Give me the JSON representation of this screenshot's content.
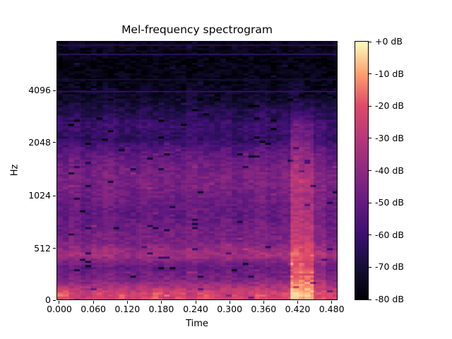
{
  "chart_data": {
    "type": "heatmap",
    "title": "Mel-frequency spectrogram",
    "xlabel": "Time",
    "ylabel": "Hz",
    "x_axis": {
      "tick_labels": [
        "0.000",
        "0.060",
        "0.120",
        "0.180",
        "0.240",
        "0.300",
        "0.360",
        "0.420",
        "0.480"
      ],
      "tick_pos": [
        0.01,
        0.131,
        0.252,
        0.373,
        0.495,
        0.616,
        0.737,
        0.858,
        0.979
      ],
      "range_s": [
        0.0,
        0.494
      ]
    },
    "y_axis": {
      "scale": "mel",
      "tick_labels": [
        "4096",
        "2048",
        "1024",
        "512",
        "0"
      ],
      "tick_pos": [
        0.191,
        0.392,
        0.597,
        0.801,
        1.0
      ]
    },
    "colorbar": {
      "tick_labels": [
        "+0 dB",
        "-10 dB",
        "-20 dB",
        "-30 dB",
        "-40 dB",
        "-50 dB",
        "-60 dB",
        "-70 dB",
        "-80 dB"
      ],
      "tick_pos": [
        0,
        0.125,
        0.25,
        0.375,
        0.5,
        0.625,
        0.75,
        0.875,
        1.0
      ],
      "colormap": "magma",
      "stops": [
        "#000004",
        "#140e36",
        "#3b0f70",
        "#641a80",
        "#8c2981",
        "#b73779",
        "#de4968",
        "#fe9f6d",
        "#fcfdbf"
      ]
    },
    "db_range": [
      -80,
      0
    ],
    "h_lines": [
      {
        "y_frac": 0.011,
        "db": -65
      },
      {
        "y_frac": 0.049,
        "db": -63
      },
      {
        "y_frac": 0.145,
        "db": -70
      },
      {
        "y_frac": 0.191,
        "db": -62
      }
    ],
    "grid": {
      "cols": 24,
      "rows": 20,
      "values_db": [
        [
          -75,
          -74,
          -76,
          -75,
          -73,
          -76,
          -75,
          -77,
          -74,
          -76,
          -75,
          -73,
          -76,
          -75,
          -77,
          -74,
          -76,
          -75,
          -73,
          -76,
          -74,
          -75,
          -76,
          -74
        ],
        [
          -78,
          -77,
          -78,
          -76,
          -78,
          -77,
          -78,
          -76,
          -77,
          -78,
          -76,
          -78,
          -77,
          -78,
          -76,
          -78,
          -77,
          -76,
          -78,
          -77,
          -78,
          -76,
          -77,
          -78
        ],
        [
          -77,
          -78,
          -76,
          -77,
          -78,
          -75,
          -77,
          -78,
          -76,
          -77,
          -75,
          -78,
          -77,
          -76,
          -78,
          -77,
          -75,
          -77,
          -78,
          -76,
          -75,
          -77,
          -76,
          -78
        ],
        [
          -76,
          -74,
          -77,
          -75,
          -73,
          -76,
          -77,
          -74,
          -76,
          -75,
          -77,
          -73,
          -75,
          -76,
          -74,
          -77,
          -75,
          -73,
          -76,
          -74,
          -72,
          -74,
          -76,
          -75
        ],
        [
          -72,
          -70,
          -73,
          -71,
          -69,
          -72,
          -73,
          -70,
          -72,
          -71,
          -73,
          -69,
          -71,
          -72,
          -70,
          -73,
          -71,
          -69,
          -72,
          -70,
          -67,
          -69,
          -71,
          -72
        ],
        [
          -66,
          -64,
          -67,
          -65,
          -63,
          -66,
          -67,
          -64,
          -66,
          -65,
          -67,
          -63,
          -65,
          -66,
          -64,
          -67,
          -65,
          -63,
          -66,
          -64,
          -58,
          -60,
          -64,
          -66
        ],
        [
          -60,
          -58,
          -61,
          -59,
          -57,
          -60,
          -61,
          -58,
          -60,
          -59,
          -61,
          -57,
          -59,
          -60,
          -58,
          -61,
          -59,
          -57,
          -60,
          -58,
          -48,
          -50,
          -57,
          -60
        ],
        [
          -63,
          -61,
          -64,
          -62,
          -60,
          -63,
          -64,
          -61,
          -63,
          -62,
          -64,
          -60,
          -62,
          -63,
          -61,
          -64,
          -62,
          -60,
          -63,
          -61,
          -45,
          -47,
          -58,
          -62
        ],
        [
          -53,
          -51,
          -54,
          -52,
          -50,
          -53,
          -54,
          -51,
          -53,
          -52,
          -54,
          -50,
          -52,
          -53,
          -51,
          -54,
          -52,
          -50,
          -53,
          -51,
          -38,
          -40,
          -49,
          -53
        ],
        [
          -48,
          -46,
          -49,
          -47,
          -45,
          -48,
          -49,
          -46,
          -48,
          -47,
          -49,
          -45,
          -47,
          -48,
          -46,
          -49,
          -47,
          -45,
          -48,
          -46,
          -34,
          -36,
          -44,
          -48
        ],
        [
          -45,
          -43,
          -46,
          -44,
          -42,
          -45,
          -46,
          -43,
          -45,
          -44,
          -46,
          -42,
          -44,
          -45,
          -43,
          -46,
          -44,
          -42,
          -45,
          -43,
          -30,
          -32,
          -41,
          -45
        ],
        [
          -47,
          -44,
          -48,
          -45,
          -43,
          -46,
          -47,
          -44,
          -46,
          -45,
          -47,
          -43,
          -45,
          -46,
          -44,
          -47,
          -45,
          -43,
          -46,
          -44,
          -31,
          -33,
          -42,
          -46
        ],
        [
          -50,
          -47,
          -51,
          -48,
          -46,
          -49,
          -50,
          -47,
          -49,
          -48,
          -50,
          -46,
          -48,
          -49,
          -47,
          -50,
          -48,
          -46,
          -49,
          -47,
          -32,
          -34,
          -44,
          -49
        ],
        [
          -52,
          -49,
          -53,
          -50,
          -48,
          -51,
          -52,
          -49,
          -51,
          -50,
          -52,
          -48,
          -50,
          -51,
          -49,
          -52,
          -50,
          -48,
          -51,
          -49,
          -30,
          -32,
          -45,
          -51
        ],
        [
          -48,
          -45,
          -49,
          -46,
          -44,
          -47,
          -48,
          -45,
          -47,
          -46,
          -48,
          -44,
          -46,
          -47,
          -45,
          -48,
          -46,
          -44,
          -47,
          -45,
          -27,
          -29,
          -42,
          -47
        ],
        [
          -46,
          -43,
          -47,
          -44,
          -42,
          -45,
          -46,
          -43,
          -45,
          -44,
          -46,
          -42,
          -44,
          -45,
          -43,
          -46,
          -44,
          -42,
          -45,
          -43,
          -25,
          -27,
          -40,
          -45
        ],
        [
          -36,
          -33,
          -37,
          -34,
          -32,
          -35,
          -36,
          -33,
          -35,
          -34,
          -36,
          -32,
          -34,
          -35,
          -33,
          -36,
          -34,
          -32,
          -35,
          -33,
          -17,
          -19,
          -30,
          -35
        ],
        [
          -52,
          -49,
          -53,
          -50,
          -48,
          -51,
          -52,
          -49,
          -51,
          -50,
          -52,
          -48,
          -50,
          -51,
          -49,
          -52,
          -50,
          -48,
          -51,
          -49,
          -20,
          -22,
          -42,
          -50
        ],
        [
          -44,
          -41,
          -45,
          -42,
          -40,
          -43,
          -44,
          -41,
          -43,
          -42,
          -44,
          -40,
          -42,
          -43,
          -41,
          -44,
          -42,
          -40,
          -43,
          -41,
          -13,
          -15,
          -34,
          -42
        ],
        [
          -18,
          -24,
          -27,
          -22,
          -25,
          -21,
          -26,
          -23,
          -20,
          -25,
          -22,
          -27,
          -21,
          -24,
          -26,
          -22,
          -25,
          -20,
          -24,
          -22,
          -6,
          -8,
          -20,
          -24
        ]
      ]
    }
  }
}
